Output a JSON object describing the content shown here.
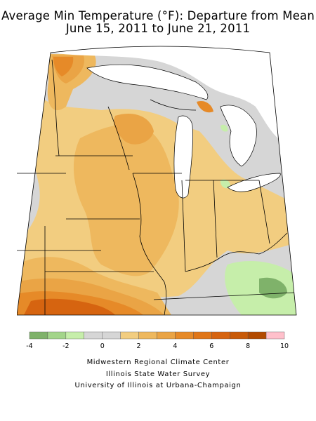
{
  "title": "Average Min Temperature (°F): Departure from Mean",
  "subtitle": "June 15, 2011 to June 21, 2011",
  "legend": {
    "ticks": [
      "-4",
      "-2",
      "0",
      "2",
      "4",
      "6",
      "8",
      "10"
    ],
    "bins": [
      {
        "from": -4,
        "to": -3,
        "color": "#7fb26a"
      },
      {
        "from": -3,
        "to": -2,
        "color": "#a3d58a"
      },
      {
        "from": -2,
        "to": -1,
        "color": "#c6eeaa"
      },
      {
        "from": -1,
        "to": 0,
        "color": "#d6d6d6"
      },
      {
        "from": 0,
        "to": 1,
        "color": "#d6d6d6"
      },
      {
        "from": 1,
        "to": 2,
        "color": "#f2cd80"
      },
      {
        "from": 2,
        "to": 3,
        "color": "#eeb85e"
      },
      {
        "from": 3,
        "to": 4,
        "color": "#eaa445"
      },
      {
        "from": 4,
        "to": 5,
        "color": "#e68a28"
      },
      {
        "from": 5,
        "to": 6,
        "color": "#e07618"
      },
      {
        "from": 6,
        "to": 7,
        "color": "#d66410"
      },
      {
        "from": 7,
        "to": 8,
        "color": "#c85a08"
      },
      {
        "from": 8,
        "to": 9,
        "color": "#b24a00"
      },
      {
        "from": 9,
        "to": 10,
        "color": "#ffc0cb"
      }
    ]
  },
  "credits": [
    "Midwestern Regional Climate Center",
    "Illinois State Water Survey",
    "University of Illinois at Urbana-Champaign"
  ],
  "colors": {
    "water": "#ffffff",
    "background": "#d6d6d6",
    "border": "#000000"
  }
}
